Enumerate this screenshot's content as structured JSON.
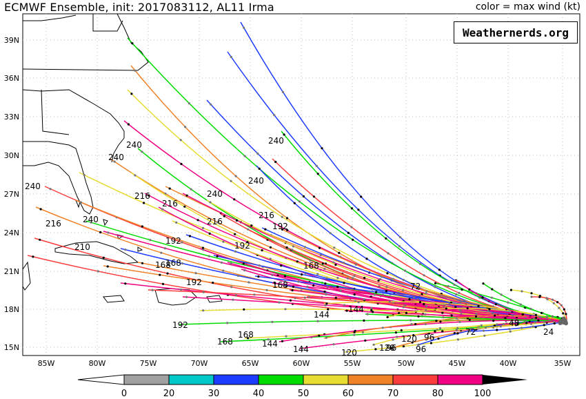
{
  "header": {
    "title": "ECMWF Ensemble, init: 2017083112, AL11 Irma",
    "subtitle": "color = max wind (kt)"
  },
  "watermark": "Weathernerds.org",
  "map": {
    "lon_labels": [
      "85W",
      "80W",
      "75W",
      "70W",
      "65W",
      "60W",
      "55W",
      "50W",
      "45W",
      "40W",
      "35W"
    ],
    "lat_labels": [
      "39N",
      "36N",
      "33N",
      "30N",
      "27N",
      "24N",
      "21N",
      "18N",
      "15N"
    ]
  },
  "colorbar": {
    "ticks": [
      "0",
      "20",
      "30",
      "40",
      "50",
      "60",
      "70",
      "80",
      "100"
    ],
    "colors": [
      "#a0a0a0",
      "#00c8c8",
      "#1e3cff",
      "#00dc00",
      "#e6dc32",
      "#f08228",
      "#fa3c3c",
      "#f00082",
      "#000000"
    ]
  },
  "hour_labels": [
    "240",
    "240",
    "240",
    "240",
    "240",
    "240",
    "240",
    "216",
    "216",
    "216",
    "216",
    "216",
    "192",
    "192",
    "192",
    "192",
    "168",
    "168",
    "168",
    "168",
    "168",
    "144",
    "144",
    "144",
    "144",
    "120",
    "120",
    "120",
    "96",
    "96",
    "96",
    "72",
    "72",
    "48",
    "24",
    "210",
    "192",
    "168"
  ]
}
